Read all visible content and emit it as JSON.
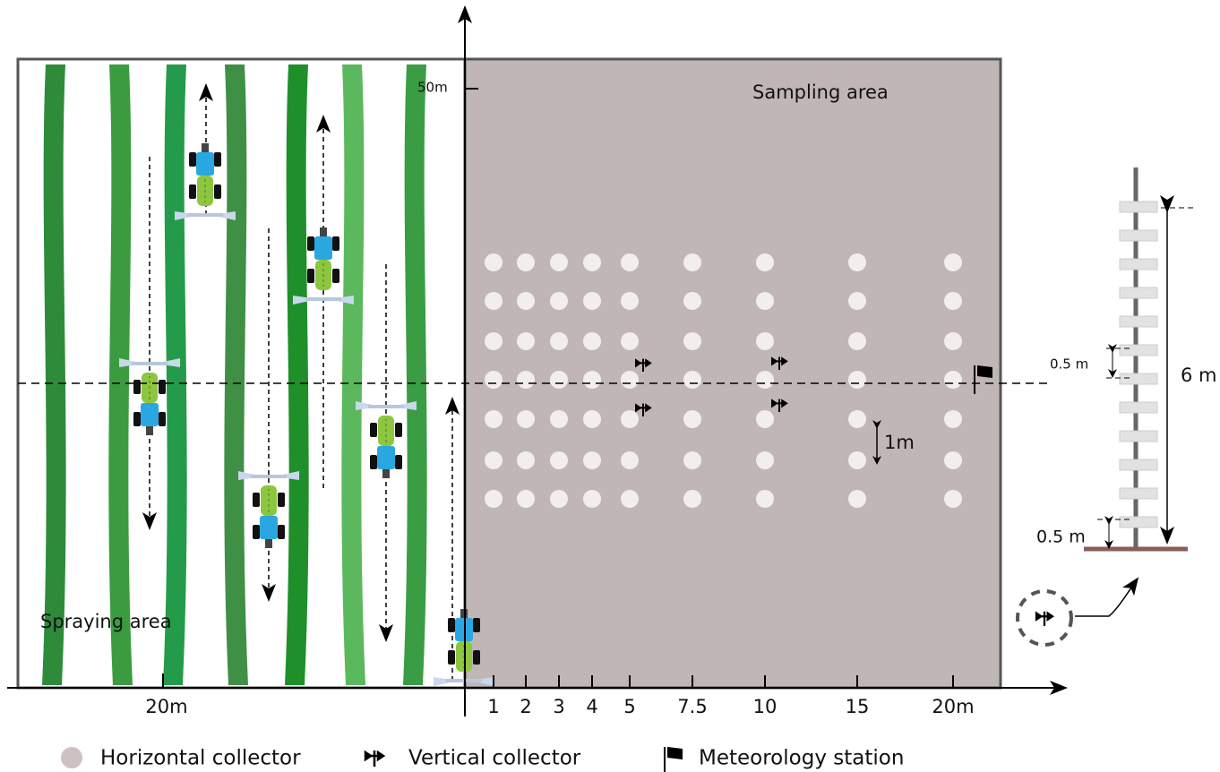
{
  "axis": {
    "y_label": "50m",
    "left_label": "20m",
    "x_ticks": [
      "1",
      "2",
      "3",
      "4",
      "5",
      "7.5",
      "10",
      "15",
      "20m"
    ]
  },
  "areas": {
    "sampling": "Sampling area",
    "spraying": "Spraying area"
  },
  "annotations": {
    "row_spacing": "1m",
    "plate_spacing": "0.5 m",
    "pole_height": "6 m",
    "base_height": "0.5 m"
  },
  "legend": [
    "Horizontal collector",
    "Vertical collector",
    "Meteorology station"
  ]
}
